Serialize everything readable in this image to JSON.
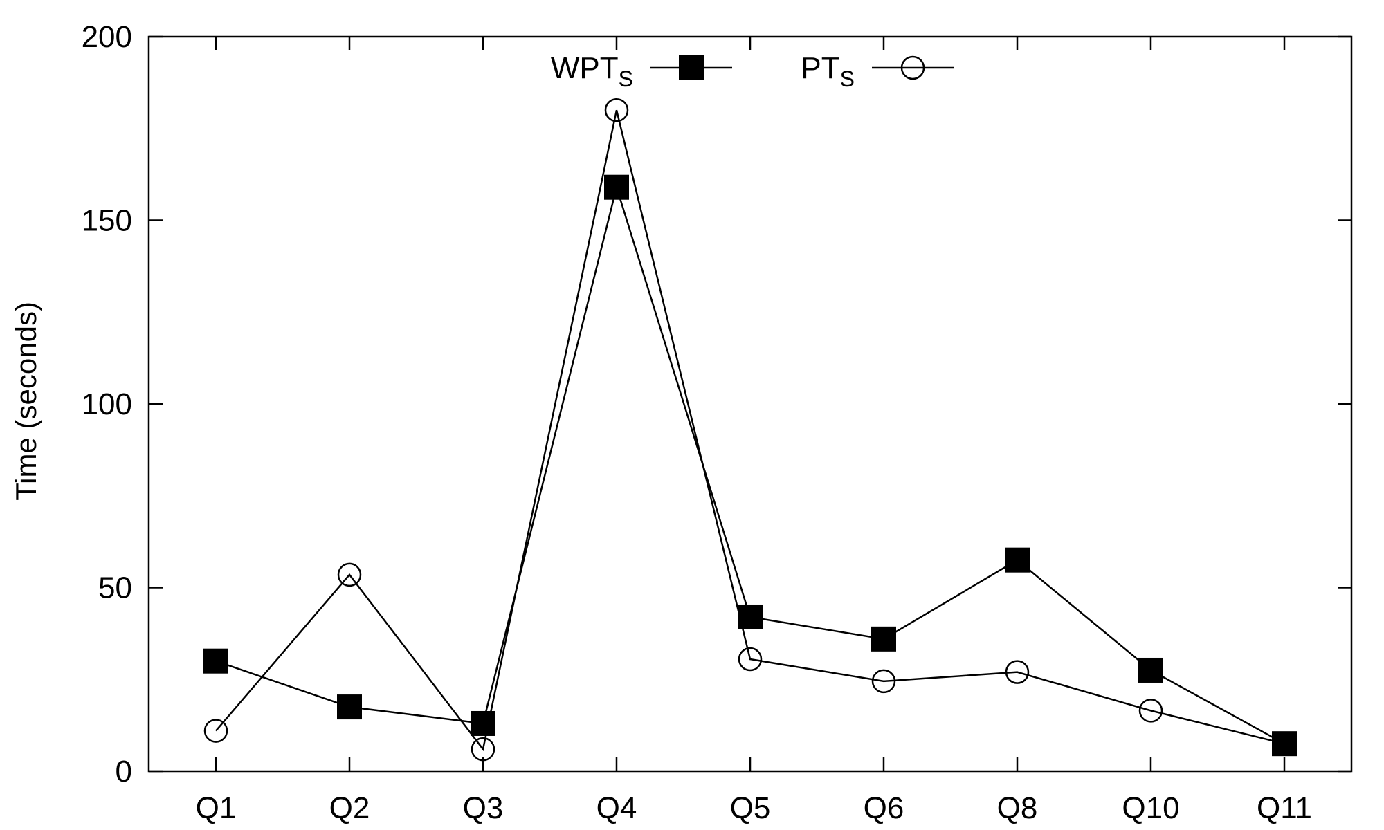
{
  "chart_data": {
    "type": "line",
    "categories": [
      "Q1",
      "Q2",
      "Q3",
      "Q4",
      "Q5",
      "Q6",
      "Q8",
      "Q10",
      "Q11"
    ],
    "xlabel": "",
    "ylabel": "Time (seconds)",
    "ylim": [
      0,
      200
    ],
    "yticks": [
      0,
      50,
      100,
      150,
      200
    ],
    "grid": false,
    "legend_position": "top-center",
    "series": [
      {
        "name": "WPT",
        "name_subscript": "S",
        "marker": "filled-square",
        "color": "#000000",
        "values": [
          30,
          17.5,
          13,
          159,
          42,
          36,
          57.5,
          27.5,
          7.5
        ]
      },
      {
        "name": "PT",
        "name_subscript": "S",
        "marker": "open-circle",
        "color": "#000000",
        "values": [
          11,
          53.5,
          6,
          180,
          30.5,
          24.5,
          27,
          16.5,
          7.5
        ]
      }
    ]
  }
}
